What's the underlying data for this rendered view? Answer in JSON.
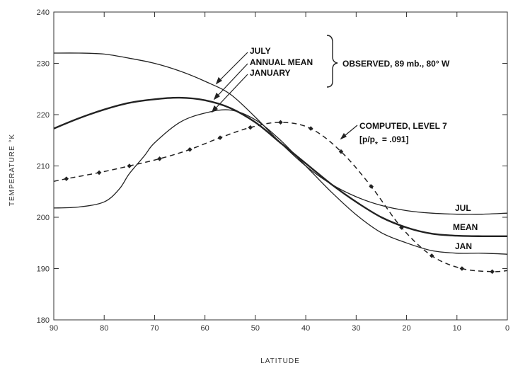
{
  "chart_data": {
    "type": "line",
    "title": "",
    "xlabel": "LATITUDE",
    "ylabel": "TEMPERATURE °K",
    "xlim": [
      90,
      0
    ],
    "ylim": [
      180,
      240
    ],
    "grid": false,
    "x_ticks": [
      "90",
      "80",
      "70",
      "60",
      "50",
      "40",
      "30",
      "20",
      "10",
      "0"
    ],
    "y_ticks": [
      "180",
      "190",
      "200",
      "210",
      "220",
      "230",
      "240"
    ],
    "series": [
      {
        "name": "JULY",
        "style": "solid",
        "x": [
          90,
          85,
          80,
          75,
          70,
          65,
          60,
          55,
          50,
          45,
          40,
          35,
          30,
          25,
          20,
          15,
          10,
          5,
          0
        ],
        "y": [
          232,
          232,
          231.8,
          231,
          230,
          228.5,
          226.5,
          224,
          219.5,
          214.5,
          210,
          206.5,
          204,
          202.3,
          201.3,
          200.8,
          200.6,
          200.6,
          200.8
        ]
      },
      {
        "name": "ANNUAL MEAN",
        "style": "solid-thick",
        "x": [
          90,
          85,
          80,
          75,
          70,
          65,
          60,
          55,
          50,
          45,
          40,
          35,
          30,
          25,
          20,
          15,
          10,
          5,
          0
        ],
        "y": [
          217.3,
          219.3,
          221,
          222.3,
          223,
          223.3,
          222.8,
          221.3,
          218.5,
          214.5,
          210.5,
          206.5,
          203,
          200,
          198,
          196.8,
          196.4,
          196.3,
          196.3
        ]
      },
      {
        "name": "JANUARY",
        "style": "solid",
        "x": [
          90,
          85,
          80,
          77,
          75,
          72,
          70,
          65,
          60,
          55,
          50,
          45,
          40,
          35,
          30,
          25,
          20,
          15,
          10,
          5,
          0
        ],
        "y": [
          201.8,
          202,
          203,
          205.5,
          208.5,
          212,
          214.5,
          218.5,
          220.3,
          220.9,
          219,
          215,
          210,
          205,
          200.5,
          197,
          195,
          193.5,
          193,
          193,
          192.8
        ]
      },
      {
        "name": "COMPUTED, LEVEL 7",
        "style": "dashed-markers",
        "x": [
          90,
          87.5,
          81,
          75,
          69,
          63,
          57,
          51,
          45,
          39,
          33,
          27,
          21,
          15,
          9,
          3,
          0
        ],
        "y": [
          207,
          207.5,
          208.7,
          210,
          211.4,
          213.2,
          215.5,
          217.5,
          218.5,
          217.3,
          212.8,
          206,
          198,
          192.5,
          190,
          189.4,
          189.6
        ]
      }
    ],
    "annotations": {
      "july": "JULY",
      "annual_mean": "ANNUAL MEAN",
      "january": "JANUARY",
      "observed": "OBSERVED, 89 mb., 80° W",
      "computed_1": "COMPUTED, LEVEL 7",
      "computed_2a": "[p/p",
      "computed_2b": "*",
      "computed_2c": "= .091]",
      "jul_end": "JUL",
      "mean_end": "MEAN",
      "jan_end": "JAN"
    }
  }
}
